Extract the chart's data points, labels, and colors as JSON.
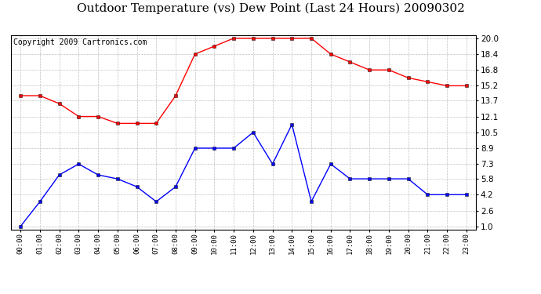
{
  "title": "Outdoor Temperature (vs) Dew Point (Last 24 Hours) 20090302",
  "copyright": "Copyright 2009 Cartronics.com",
  "x_labels": [
    "00:00",
    "01:00",
    "02:00",
    "03:00",
    "04:00",
    "05:00",
    "06:00",
    "07:00",
    "08:00",
    "09:00",
    "10:00",
    "11:00",
    "12:00",
    "13:00",
    "14:00",
    "15:00",
    "16:00",
    "17:00",
    "18:00",
    "19:00",
    "20:00",
    "21:00",
    "22:00",
    "23:00"
  ],
  "temp_values": [
    14.2,
    14.2,
    13.4,
    12.1,
    12.1,
    11.4,
    11.4,
    11.4,
    14.2,
    18.4,
    19.2,
    20.0,
    20.0,
    20.0,
    20.0,
    20.0,
    18.4,
    17.6,
    16.8,
    16.8,
    16.0,
    15.6,
    15.2,
    15.2
  ],
  "dew_values": [
    1.0,
    3.5,
    6.2,
    7.3,
    6.2,
    5.8,
    5.0,
    3.5,
    5.0,
    8.9,
    8.9,
    8.9,
    10.5,
    7.3,
    11.3,
    3.5,
    7.3,
    5.8,
    5.8,
    5.8,
    5.8,
    4.2,
    4.2,
    4.2
  ],
  "temp_color": "#FF0000",
  "dew_color": "#0000FF",
  "bg_color": "#FFFFFF",
  "plot_bg": "#FFFFFF",
  "grid_color": "#C0C0C0",
  "yticks": [
    1.0,
    2.6,
    4.2,
    5.8,
    7.3,
    8.9,
    10.5,
    12.1,
    13.7,
    15.2,
    16.8,
    18.4,
    20.0
  ],
  "ylim_min": 0.7,
  "ylim_max": 20.3,
  "title_fontsize": 11,
  "copyright_fontsize": 7,
  "tick_fontsize": 7.5,
  "xtick_fontsize": 6.5
}
